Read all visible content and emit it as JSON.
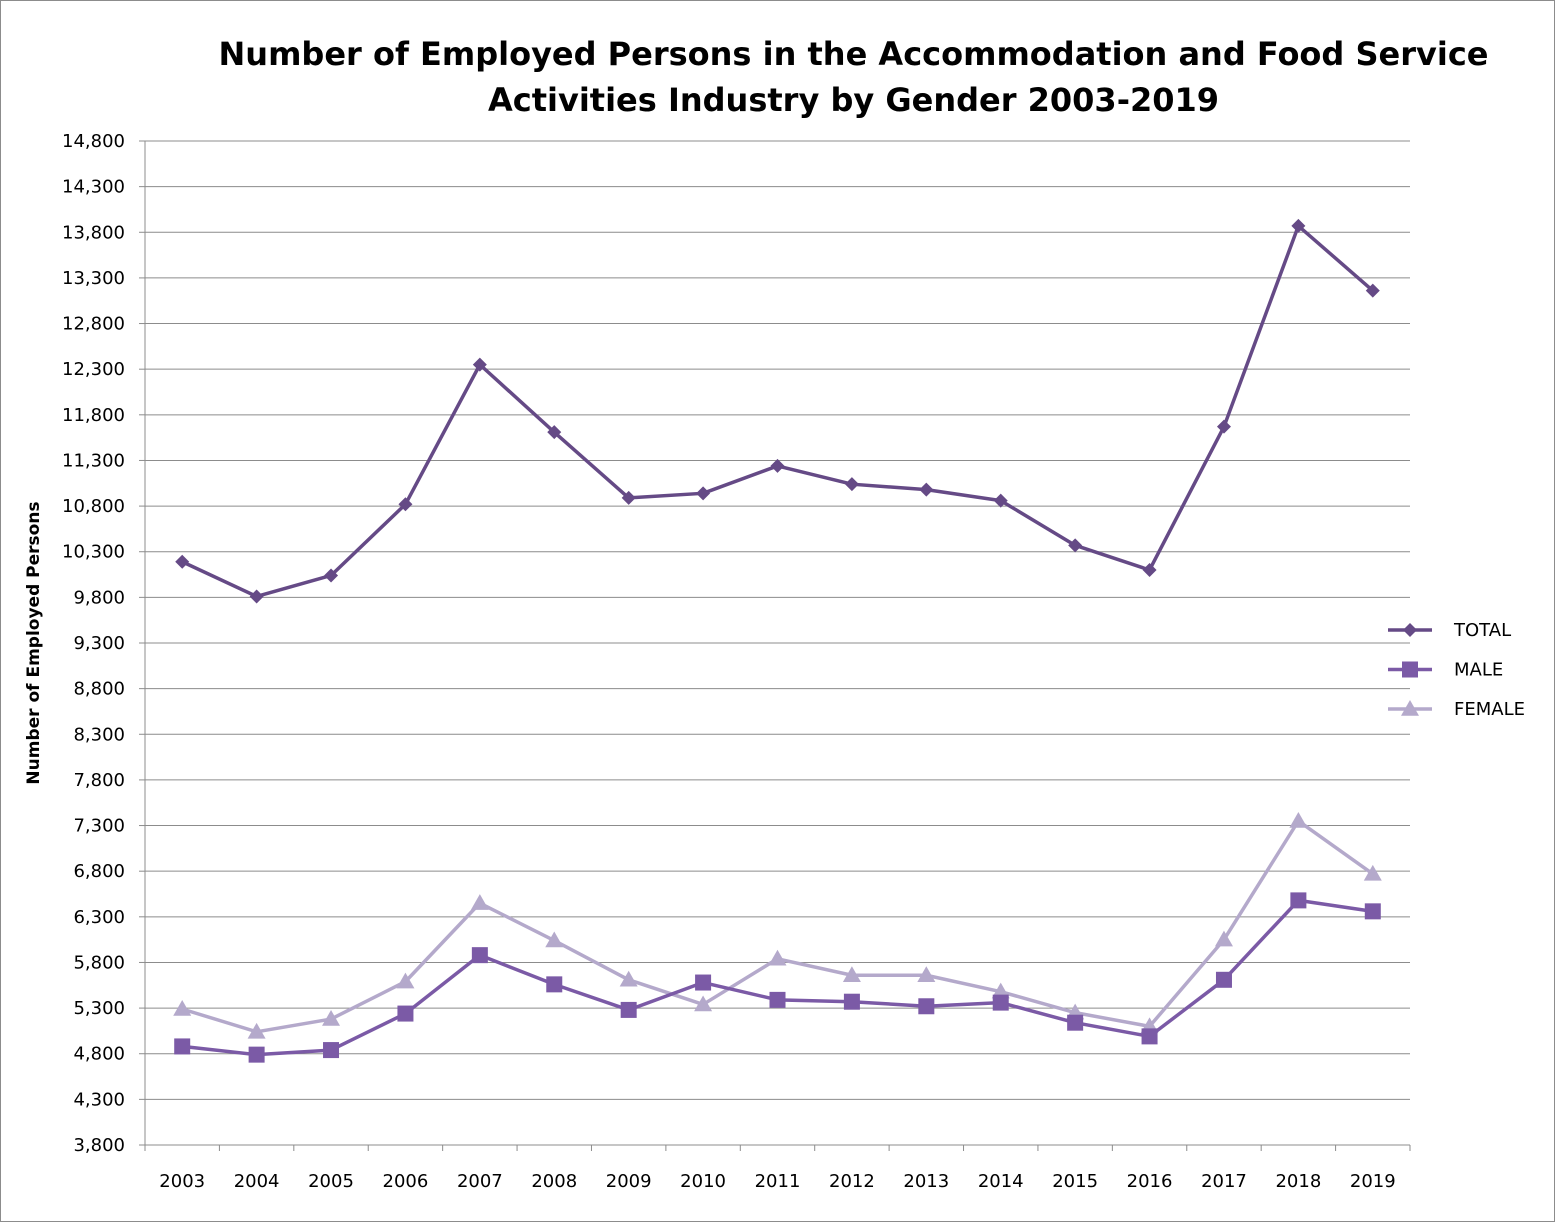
{
  "chart_data": {
    "type": "line",
    "title_line1": "Number of Employed Persons in the Accommodation and Food Service",
    "title_line2": "Activities Industry by Gender 2003-2019",
    "xlabel": "",
    "ylabel": "Number of Employed Persons",
    "ylim": [
      3800,
      14800
    ],
    "yticks": [
      "3,800",
      "4,300",
      "4,800",
      "5,300",
      "5,800",
      "6,300",
      "6,800",
      "7,300",
      "7,800",
      "8,300",
      "8,800",
      "9,300",
      "9,800",
      "10,300",
      "10,800",
      "11,300",
      "11,800",
      "12,300",
      "12,800",
      "13,300",
      "13,800",
      "14,300",
      "14,800"
    ],
    "grid": true,
    "legend_position": "right",
    "categories": [
      "2003",
      "2004",
      "2005",
      "2006",
      "2007",
      "2008",
      "2009",
      "2010",
      "2011",
      "2012",
      "2013",
      "2014",
      "2015",
      "2016",
      "2017",
      "2018",
      "2019"
    ],
    "series": [
      {
        "name": "TOTAL",
        "color": "#654a86",
        "marker": "diamond",
        "values": [
          10190,
          9810,
          10040,
          10820,
          12350,
          11610,
          10890,
          10940,
          11240,
          11040,
          10980,
          10860,
          10370,
          10100,
          11670,
          13870,
          13160
        ]
      },
      {
        "name": "MALE",
        "color": "#7b5aa6",
        "marker": "square",
        "values": [
          4880,
          4790,
          4840,
          5240,
          5880,
          5560,
          5280,
          5580,
          5390,
          5370,
          5320,
          5360,
          5140,
          4990,
          5610,
          6480,
          6360
        ]
      },
      {
        "name": "FEMALE",
        "color": "#b4a9cb",
        "marker": "triangle",
        "values": [
          5290,
          5040,
          5180,
          5590,
          6450,
          6040,
          5610,
          5340,
          5840,
          5660,
          5660,
          5480,
          5250,
          5100,
          6050,
          7350,
          6770
        ]
      }
    ]
  }
}
